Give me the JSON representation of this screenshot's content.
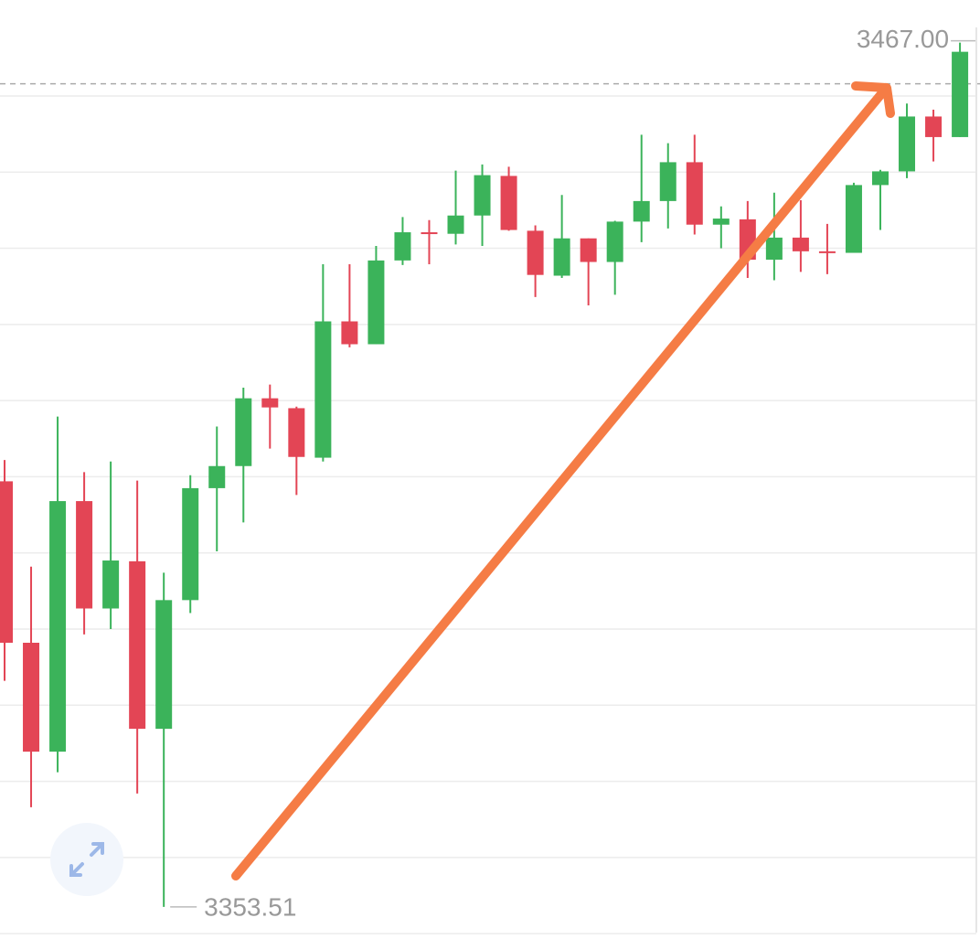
{
  "chart_data": {
    "type": "candlestick",
    "open": [
      3409.4,
      3388.2,
      3373.9,
      3406.8,
      3392.7,
      3398.9,
      3376.9,
      3393.8,
      3408.5,
      3411.4,
      3420.3,
      3419.0,
      3412.5,
      3430.4,
      3427.4,
      3438.4,
      3442.1,
      3441.9,
      3444.3,
      3449.5,
      3442.3,
      3436.4,
      3441.3,
      3438.2,
      3443.5,
      3446.2,
      3451.3,
      3443.1,
      3443.8,
      3438.5,
      3441.4,
      3439.6,
      3439.4,
      3448.3,
      3450.1,
      3457.3,
      3454.6
    ],
    "high": [
      3412.2,
      3398.2,
      3417.9,
      3410.6,
      3412.0,
      3409.5,
      3397.4,
      3410.2,
      3416.6,
      3421.7,
      3422.1,
      3419.2,
      3437.9,
      3437.9,
      3440.3,
      3444.1,
      3443.7,
      3450.2,
      3451.0,
      3450.7,
      3443.0,
      3447.0,
      3441.3,
      3443.6,
      3454.9,
      3453.8,
      3454.9,
      3445.5,
      3446.2,
      3447.3,
      3446.3,
      3443.2,
      3448.6,
      3450.3,
      3459.0,
      3458.2,
      3467.0
    ],
    "low": [
      3383.2,
      3366.6,
      3371.2,
      3389.3,
      3390.0,
      3368.4,
      3353.51,
      3392.1,
      3400.2,
      3404.0,
      3413.7,
      3407.6,
      3412.0,
      3427.0,
      3427.4,
      3437.8,
      3437.9,
      3440.5,
      3440.3,
      3442.3,
      3433.6,
      3436.1,
      3432.5,
      3433.9,
      3440.8,
      3442.6,
      3441.8,
      3440.0,
      3436.1,
      3435.8,
      3436.9,
      3436.6,
      3439.4,
      3442.4,
      3449.2,
      3451.4,
      3454.6
    ],
    "close": [
      3388.2,
      3373.9,
      3406.8,
      3392.7,
      3399.0,
      3376.9,
      3393.8,
      3408.5,
      3411.4,
      3420.3,
      3419.1,
      3412.6,
      3430.4,
      3427.4,
      3438.4,
      3442.1,
      3441.9,
      3444.3,
      3449.6,
      3442.4,
      3436.5,
      3441.3,
      3438.2,
      3443.5,
      3446.2,
      3451.3,
      3443.1,
      3443.9,
      3438.5,
      3441.4,
      3439.6,
      3439.4,
      3448.3,
      3450.1,
      3457.3,
      3454.6,
      3465.8
    ],
    "up_color": "#3bb35a",
    "down_color": "#e34555",
    "ylim": [
      3349.3,
      3472.6
    ],
    "gridlines": [
      3350,
      3360,
      3370,
      3380,
      3390,
      3400,
      3410,
      3420,
      3430,
      3440,
      3450,
      3460
    ],
    "grid": true,
    "reference_line": 3461.6,
    "annotations": [
      {
        "value": 3467.0,
        "label": "3467.00"
      },
      {
        "value": 3353.51,
        "label": "3353.51"
      }
    ]
  }
}
